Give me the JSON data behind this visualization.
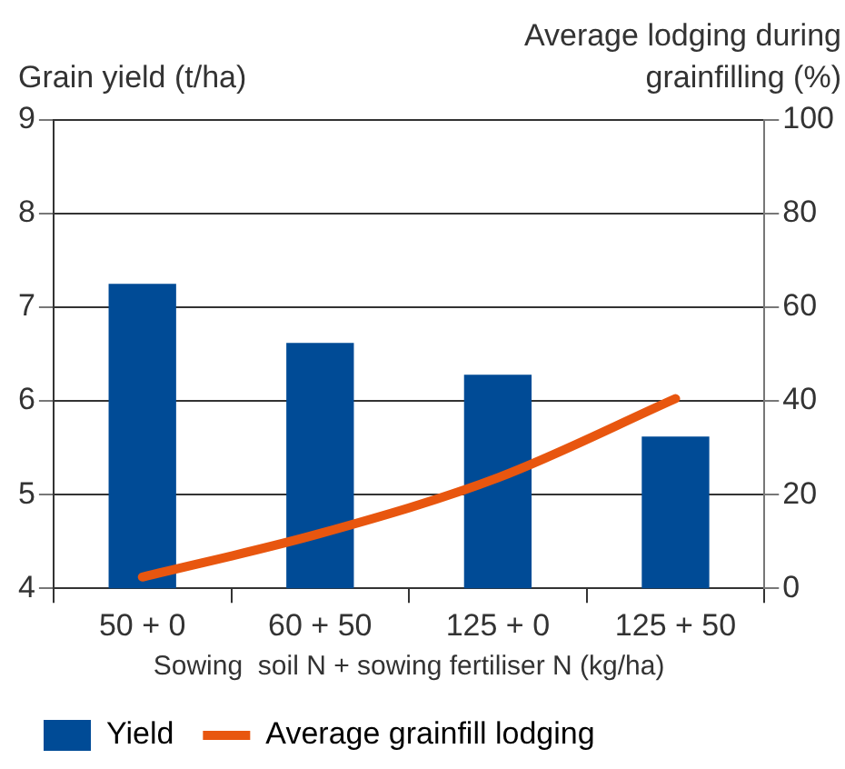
{
  "chart_data": {
    "type": "bar",
    "xlabel": "Sowing  soil N + sowing fertiliser N (kg/ha)",
    "ylabel": "Grain yield (t/ha)",
    "y2label": "Average lodging during grainfilling (%)",
    "categories": [
      "50 + 0",
      "60 + 50",
      "125 + 0",
      "125 + 50"
    ],
    "series": [
      {
        "name": "Yield",
        "color": "#004b96",
        "values": [
          7.25,
          6.62,
          6.28,
          5.62
        ]
      },
      {
        "name": "Average grainfill lodging",
        "type": "line",
        "axis": "y2",
        "color": "#e8560f",
        "values": [
          2.4,
          11.7,
          23.6,
          40.5
        ]
      }
    ],
    "ylim": [
      4,
      9
    ],
    "yticks": [
      4,
      5,
      6,
      7,
      8,
      9
    ],
    "y2lim": [
      0,
      100
    ],
    "y2ticks": [
      0,
      20,
      40,
      60,
      80,
      100
    ],
    "grid": "y",
    "legend": "bottom left",
    "marker": "none",
    "line_style": "solid"
  }
}
